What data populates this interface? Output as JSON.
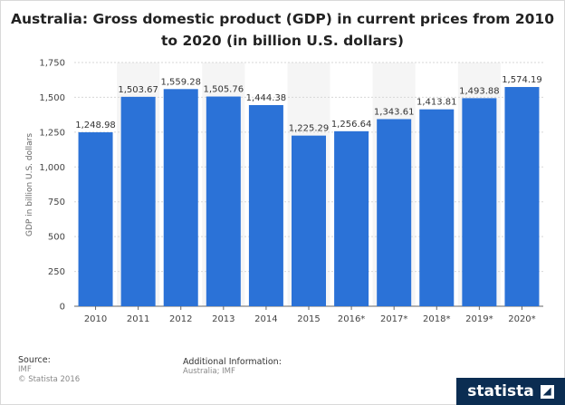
{
  "chart_data": {
    "type": "bar",
    "title_line1": "Australia: Gross domestic product (GDP) in current prices from 2010",
    "title_line2": "to 2020 (in billion U.S. dollars)",
    "ylabel": "GDP in billion U.S. dollars",
    "xlabel": "",
    "categories": [
      "2010",
      "2011",
      "2012",
      "2013",
      "2014",
      "2015",
      "2016*",
      "2017*",
      "2018*",
      "2019*",
      "2020*"
    ],
    "values": [
      1248.98,
      1503.67,
      1559.28,
      1505.76,
      1444.38,
      1225.29,
      1256.64,
      1343.61,
      1413.81,
      1493.88,
      1574.19
    ],
    "value_labels": [
      "1,248.98",
      "1,503.67",
      "1,559.28",
      "1,505.76",
      "1,444.38",
      "1,225.29",
      "1,256.64",
      "1,343.61",
      "1,413.81",
      "1,493.88",
      "1,574.19"
    ],
    "ylim": [
      0,
      1750
    ],
    "yticks": [
      0,
      250,
      500,
      750,
      1000,
      1250,
      1500,
      1750
    ],
    "ytick_labels": [
      "0",
      "250",
      "500",
      "750",
      "1,000",
      "1,250",
      "1,500",
      "1,750"
    ],
    "bar_color": "#2b72d7",
    "grid": true
  },
  "footer": {
    "source_label": "Source:",
    "source_value": "IMF",
    "copyright": "© Statista 2016",
    "additional_label": "Additional Information:",
    "additional_value": "Australia; IMF",
    "brand": "statista"
  }
}
